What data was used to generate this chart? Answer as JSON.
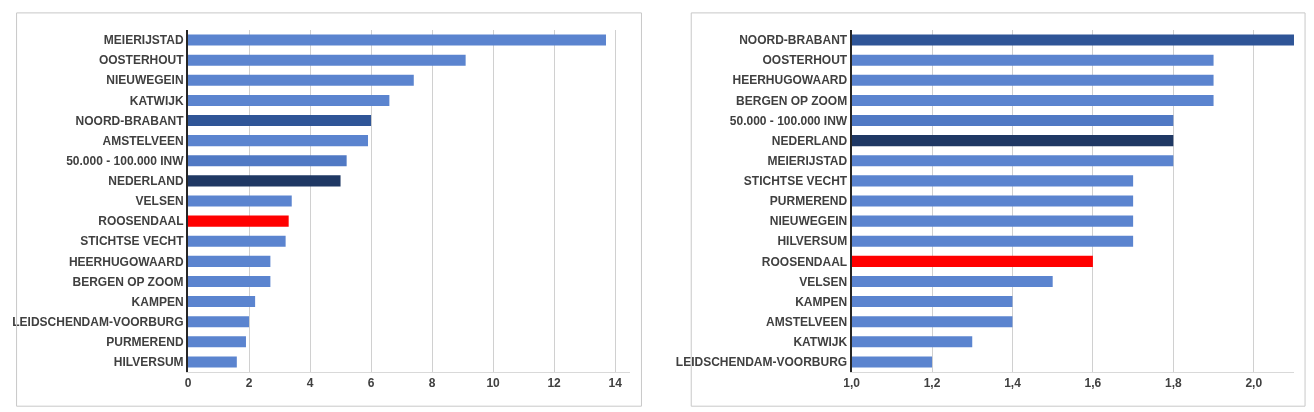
{
  "chart_data": [
    {
      "type": "bar",
      "orientation": "horizontal",
      "categories": [
        "MEIERIJSTAD",
        "OOSTERHOUT",
        "NIEUWEGEIN",
        "KATWIJK",
        "NOORD-BRABANT",
        "AMSTELVEEN",
        "50.000 - 100.000 INW",
        "NEDERLAND",
        "VELSEN",
        "ROOSENDAAL",
        "STICHTSE VECHT",
        "HEERHUGOWAARD",
        "BERGEN OP ZOOM",
        "KAMPEN",
        "LEIDSCHENDAM-VOORBURG",
        "PURMEREND",
        "HILVERSUM"
      ],
      "values": [
        13.7,
        9.1,
        7.4,
        6.6,
        6.0,
        5.9,
        5.2,
        5.0,
        3.4,
        3.3,
        3.2,
        2.7,
        2.7,
        2.2,
        2.0,
        1.9,
        1.6
      ],
      "colors": [
        "#5b84cf",
        "#5b84cf",
        "#5b84cf",
        "#5b84cf",
        "#2f5597",
        "#5b84cf",
        "#5079c4",
        "#1f3864",
        "#5b84cf",
        "#ff0000",
        "#5b84cf",
        "#5b84cf",
        "#5b84cf",
        "#5b84cf",
        "#5b84cf",
        "#5b84cf",
        "#5b84cf"
      ],
      "xlim": [
        0,
        14.5
      ],
      "xticks": [
        0,
        2,
        4,
        6,
        8,
        10,
        12,
        14
      ],
      "grid": "x"
    },
    {
      "type": "bar",
      "orientation": "horizontal",
      "categories": [
        "NOORD-BRABANT",
        "OOSTERHOUT",
        "HEERHUGOWAARD",
        "BERGEN OP ZOOM",
        "50.000 - 100.000 INW",
        "NEDERLAND",
        "MEIERIJSTAD",
        "STICHTSE VECHT",
        "PURMEREND",
        "NIEUWEGEIN",
        "HILVERSUM",
        "ROOSENDAAL",
        "VELSEN",
        "KAMPEN",
        "AMSTELVEEN",
        "KATWIJK",
        "LEIDSCHENDAM-VOORBURG"
      ],
      "values": [
        2.1,
        1.9,
        1.9,
        1.9,
        1.8,
        1.8,
        1.8,
        1.7,
        1.7,
        1.7,
        1.7,
        1.6,
        1.5,
        1.4,
        1.4,
        1.3,
        1.2
      ],
      "colors": [
        "#2f5597",
        "#5b84cf",
        "#5b84cf",
        "#5b84cf",
        "#5079c4",
        "#1f3864",
        "#5b84cf",
        "#5b84cf",
        "#5b84cf",
        "#5b84cf",
        "#5b84cf",
        "#ff0000",
        "#5b84cf",
        "#5b84cf",
        "#5b84cf",
        "#5b84cf",
        "#5b84cf"
      ],
      "xlim": [
        1.0,
        2.1
      ],
      "xticks": [
        {
          "value": 1.0,
          "label": "1,0"
        },
        {
          "value": 1.2,
          "label": "1,2"
        },
        {
          "value": 1.4,
          "label": "1,4"
        },
        {
          "value": 1.6,
          "label": "1,6"
        },
        {
          "value": 1.8,
          "label": "1,8"
        },
        {
          "value": 2.0,
          "label": "2,0"
        }
      ],
      "grid": "x"
    }
  ]
}
